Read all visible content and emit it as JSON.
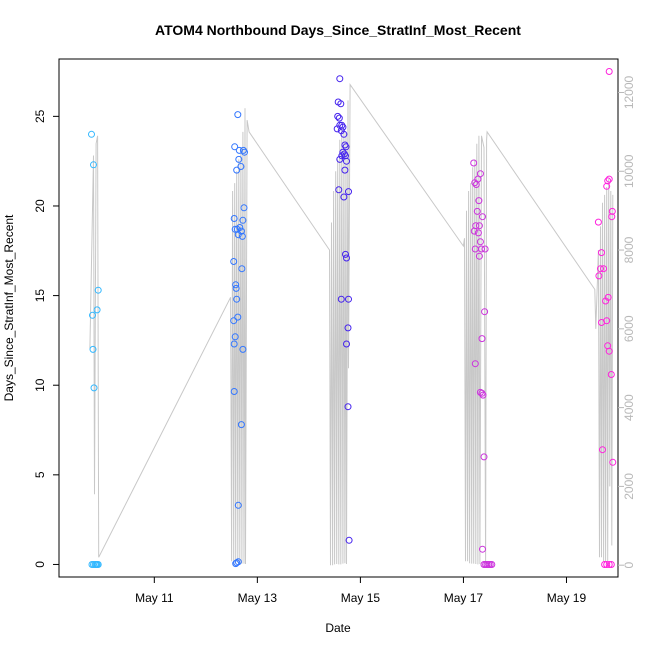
{
  "chart_data": {
    "type": "scatter",
    "title": "ATOM4 Northbound Days_Since_StratInf_Most_Recent",
    "xlabel": "Date",
    "ylabel": "Days_Since_StratInf_Most_Recent",
    "y2label": "",
    "grid": false,
    "legend": "none",
    "x_ticks": [
      {
        "label": "May 11",
        "x": 11.0
      },
      {
        "label": "May 13",
        "x": 13.0
      },
      {
        "label": "May 15",
        "x": 15.0
      },
      {
        "label": "May 17",
        "x": 17.0
      },
      {
        "label": "May 19",
        "x": 19.0
      }
    ],
    "y_ticks": [
      0,
      5,
      10,
      15,
      20,
      25
    ],
    "y2_ticks": [
      0,
      2000,
      4000,
      6000,
      8000,
      10000,
      12000
    ],
    "xlim": [
      9.15,
      20.0
    ],
    "ylim": [
      -0.7,
      28.2
    ],
    "y2lim": [
      -300,
      12850
    ],
    "series": [
      {
        "color": "#33b8ff",
        "points": [
          [
            9.78,
            24.0
          ],
          [
            9.82,
            22.3
          ],
          [
            9.8,
            13.9
          ],
          [
            9.81,
            12.0
          ],
          [
            9.83,
            9.85
          ],
          [
            9.91,
            15.3
          ],
          [
            9.89,
            14.2
          ],
          [
            9.79,
            0.0
          ],
          [
            9.82,
            0.0
          ],
          [
            9.85,
            0.0
          ],
          [
            9.87,
            0.0
          ],
          [
            9.89,
            0.0
          ],
          [
            9.91,
            0.0
          ]
        ]
      },
      {
        "color": "#3377ff",
        "points": [
          [
            12.62,
            25.1
          ],
          [
            12.56,
            23.3
          ],
          [
            12.65,
            23.1
          ],
          [
            12.73,
            23.1
          ],
          [
            12.75,
            23.0
          ],
          [
            12.64,
            22.6
          ],
          [
            12.6,
            22.0
          ],
          [
            12.68,
            22.2
          ],
          [
            12.74,
            19.9
          ],
          [
            12.55,
            19.3
          ],
          [
            12.72,
            19.2
          ],
          [
            12.57,
            18.7
          ],
          [
            12.61,
            18.7
          ],
          [
            12.66,
            18.8
          ],
          [
            12.69,
            18.6
          ],
          [
            12.63,
            18.4
          ],
          [
            12.71,
            18.3
          ],
          [
            12.54,
            16.9
          ],
          [
            12.7,
            16.5
          ],
          [
            12.58,
            15.6
          ],
          [
            12.59,
            15.4
          ],
          [
            12.6,
            14.8
          ],
          [
            12.54,
            13.6
          ],
          [
            12.62,
            13.8
          ],
          [
            12.57,
            12.7
          ],
          [
            12.55,
            12.3
          ],
          [
            12.72,
            12.0
          ],
          [
            12.55,
            9.65
          ],
          [
            12.69,
            7.8
          ],
          [
            12.63,
            3.3
          ],
          [
            12.6,
            0.1
          ],
          [
            12.63,
            0.15
          ],
          [
            12.58,
            0.05
          ]
        ]
      },
      {
        "color": "#4422ee",
        "points": [
          [
            14.6,
            27.1
          ],
          [
            14.57,
            25.8
          ],
          [
            14.62,
            25.7
          ],
          [
            14.56,
            25.0
          ],
          [
            14.59,
            24.9
          ],
          [
            14.64,
            24.5
          ],
          [
            14.66,
            24.4
          ],
          [
            14.55,
            24.3
          ],
          [
            14.6,
            24.5
          ],
          [
            14.63,
            24.2
          ],
          [
            14.68,
            24.0
          ],
          [
            14.7,
            23.4
          ],
          [
            14.72,
            23.3
          ],
          [
            14.66,
            23.0
          ],
          [
            14.69,
            22.9
          ],
          [
            14.71,
            22.8
          ],
          [
            14.64,
            22.8
          ],
          [
            14.73,
            22.5
          ],
          [
            14.7,
            22.0
          ],
          [
            14.6,
            22.6
          ],
          [
            14.58,
            20.9
          ],
          [
            14.77,
            20.8
          ],
          [
            14.68,
            20.5
          ],
          [
            14.71,
            17.3
          ],
          [
            14.73,
            17.1
          ],
          [
            14.63,
            14.8
          ],
          [
            14.77,
            14.8
          ],
          [
            14.76,
            13.2
          ],
          [
            14.73,
            12.3
          ],
          [
            14.76,
            8.8
          ],
          [
            14.78,
            1.35
          ]
        ]
      },
      {
        "color": "#cc33dd",
        "points": [
          [
            17.2,
            22.4
          ],
          [
            17.33,
            21.8
          ],
          [
            17.28,
            21.5
          ],
          [
            17.22,
            21.3
          ],
          [
            17.25,
            21.2
          ],
          [
            17.3,
            20.3
          ],
          [
            17.27,
            19.7
          ],
          [
            17.37,
            19.4
          ],
          [
            17.24,
            18.9
          ],
          [
            17.31,
            18.9
          ],
          [
            17.21,
            18.6
          ],
          [
            17.29,
            18.5
          ],
          [
            17.33,
            18.0
          ],
          [
            17.23,
            17.6
          ],
          [
            17.35,
            17.6
          ],
          [
            17.42,
            17.6
          ],
          [
            17.31,
            17.2
          ],
          [
            17.41,
            14.1
          ],
          [
            17.36,
            12.6
          ],
          [
            17.23,
            11.2
          ],
          [
            17.33,
            9.6
          ],
          [
            17.36,
            9.55
          ],
          [
            17.38,
            9.45
          ],
          [
            17.4,
            6.0
          ],
          [
            17.37,
            0.85
          ],
          [
            17.4,
            0.0
          ],
          [
            17.43,
            0.0
          ],
          [
            17.46,
            0.0
          ],
          [
            17.49,
            0.0
          ],
          [
            17.52,
            0.0
          ],
          [
            17.55,
            0.0
          ]
        ]
      },
      {
        "color": "#ff22dd",
        "points": [
          [
            19.83,
            27.5
          ],
          [
            19.83,
            21.5
          ],
          [
            19.8,
            21.4
          ],
          [
            19.78,
            21.1
          ],
          [
            19.89,
            19.7
          ],
          [
            19.88,
            19.4
          ],
          [
            19.62,
            19.1
          ],
          [
            19.68,
            17.4
          ],
          [
            19.66,
            16.5
          ],
          [
            19.72,
            16.5
          ],
          [
            19.63,
            16.1
          ],
          [
            19.81,
            14.9
          ],
          [
            19.76,
            14.7
          ],
          [
            19.68,
            13.5
          ],
          [
            19.78,
            13.6
          ],
          [
            19.8,
            12.2
          ],
          [
            19.83,
            11.9
          ],
          [
            19.87,
            10.6
          ],
          [
            19.7,
            6.4
          ],
          [
            19.9,
            5.7
          ],
          [
            19.74,
            0.0
          ],
          [
            19.78,
            0.0
          ],
          [
            19.83,
            0.0
          ],
          [
            19.87,
            0.0
          ]
        ]
      }
    ],
    "secondary_line": {
      "color": "#c8c8c8",
      "points": [
        [
          9.75,
          5500
        ],
        [
          9.82,
          10400
        ],
        [
          9.84,
          1800
        ],
        [
          9.87,
          10700
        ],
        [
          9.9,
          10900
        ],
        [
          9.92,
          200
        ],
        [
          12.48,
          6800
        ],
        [
          12.5,
          100
        ],
        [
          12.52,
          9500
        ],
        [
          12.54,
          0
        ],
        [
          12.56,
          9700
        ],
        [
          12.58,
          80
        ],
        [
          12.6,
          10000
        ],
        [
          12.62,
          60
        ],
        [
          12.64,
          10300
        ],
        [
          12.66,
          40
        ],
        [
          12.68,
          10600
        ],
        [
          12.7,
          40
        ],
        [
          12.72,
          11000
        ],
        [
          12.74,
          40
        ],
        [
          12.76,
          11600
        ],
        [
          12.77,
          30
        ],
        [
          12.8,
          11300
        ],
        [
          12.84,
          11000
        ],
        [
          14.4,
          8000
        ],
        [
          14.42,
          0
        ],
        [
          14.44,
          8700
        ],
        [
          14.46,
          0
        ],
        [
          14.48,
          9500
        ],
        [
          14.5,
          20
        ],
        [
          14.52,
          10000
        ],
        [
          14.54,
          30
        ],
        [
          14.56,
          10300
        ],
        [
          14.58,
          20
        ],
        [
          14.6,
          10800
        ],
        [
          14.62,
          20
        ],
        [
          14.64,
          11100
        ],
        [
          14.66,
          40
        ],
        [
          14.68,
          11000
        ],
        [
          14.7,
          50
        ],
        [
          14.72,
          11000
        ],
        [
          14.73,
          30
        ],
        [
          14.76,
          11800
        ],
        [
          14.77,
          5000
        ],
        [
          14.8,
          12200
        ],
        [
          17.0,
          8100
        ],
        [
          17.02,
          8300
        ],
        [
          17.04,
          100
        ],
        [
          17.06,
          9000
        ],
        [
          17.08,
          100
        ],
        [
          17.1,
          9500
        ],
        [
          17.12,
          50
        ],
        [
          17.14,
          9700
        ],
        [
          17.16,
          40
        ],
        [
          17.18,
          10100
        ],
        [
          17.2,
          40
        ],
        [
          17.22,
          10300
        ],
        [
          17.24,
          30
        ],
        [
          17.26,
          10700
        ],
        [
          17.28,
          20
        ],
        [
          17.3,
          10900
        ],
        [
          17.32,
          30
        ],
        [
          17.35,
          10900
        ],
        [
          17.4,
          10600
        ],
        [
          17.43,
          20
        ],
        [
          17.45,
          10800
        ],
        [
          17.46,
          11000
        ],
        [
          19.55,
          7000
        ],
        [
          19.57,
          6000
        ],
        [
          19.6,
          7200
        ],
        [
          19.62,
          8000
        ],
        [
          19.64,
          200
        ],
        [
          19.66,
          8600
        ],
        [
          19.68,
          200
        ],
        [
          19.7,
          9200
        ],
        [
          19.72,
          100
        ],
        [
          19.74,
          9400
        ],
        [
          19.76,
          100
        ],
        [
          19.78,
          9600
        ],
        [
          19.8,
          100
        ],
        [
          19.82,
          9800
        ],
        [
          19.84,
          2000
        ],
        [
          19.86,
          9500
        ],
        [
          19.88,
          500
        ],
        [
          19.9,
          9400
        ]
      ]
    }
  }
}
